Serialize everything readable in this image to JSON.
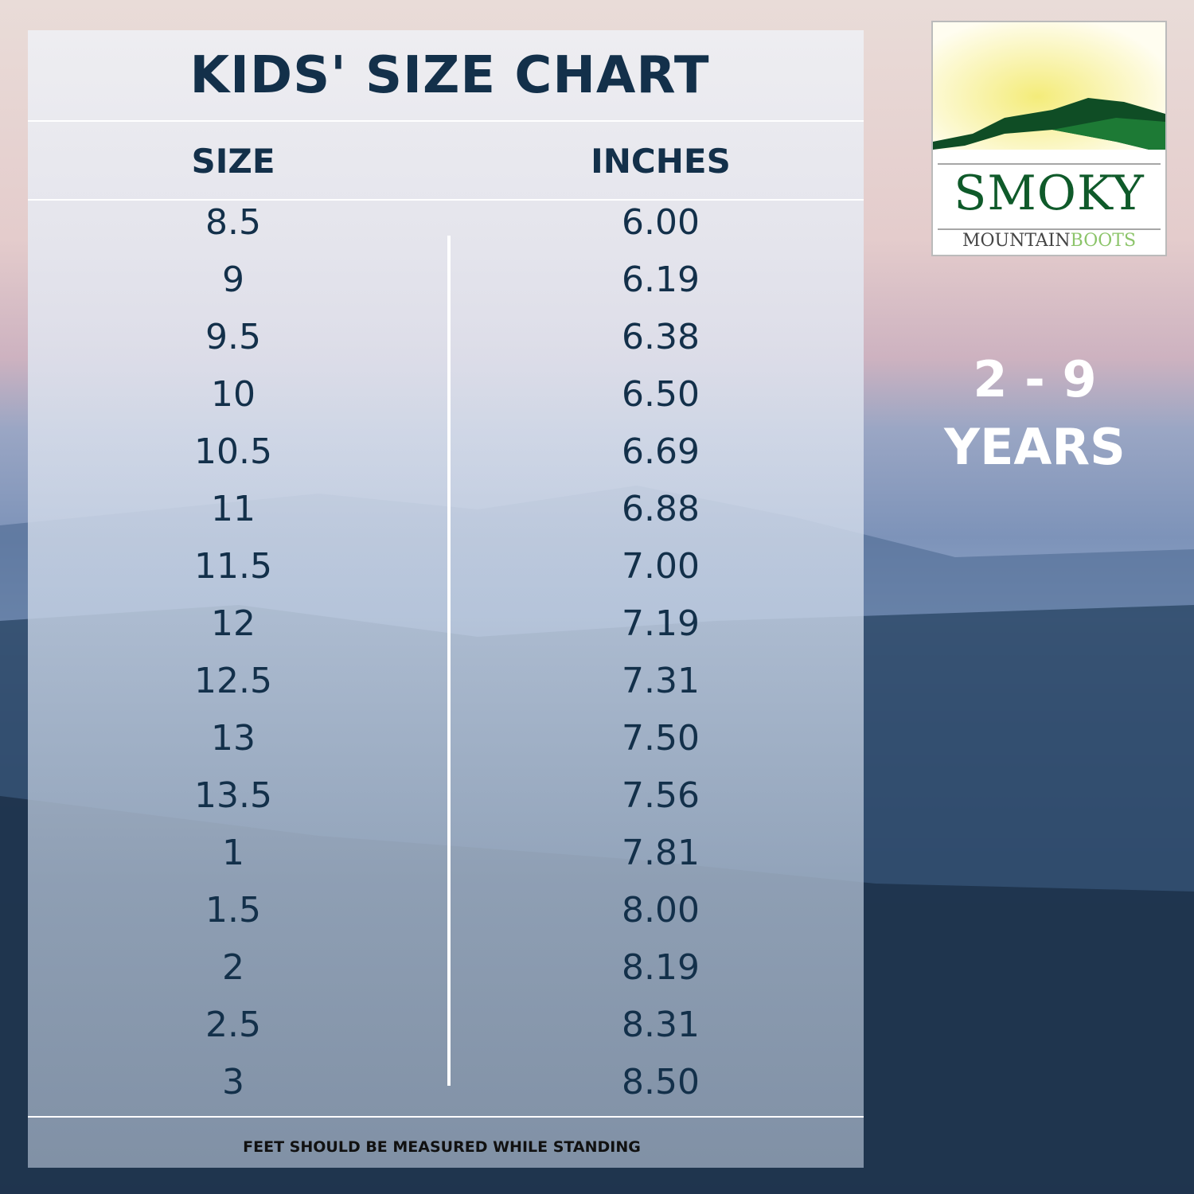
{
  "title": "KIDS' SIZE CHART",
  "columns": [
    "SIZE",
    "INCHES"
  ],
  "rows": [
    [
      "8.5",
      "6.00"
    ],
    [
      "9",
      "6.19"
    ],
    [
      "9.5",
      "6.38"
    ],
    [
      "10",
      "6.50"
    ],
    [
      "10.5",
      "6.69"
    ],
    [
      "11",
      "6.88"
    ],
    [
      "11.5",
      "7.00"
    ],
    [
      "12",
      "7.19"
    ],
    [
      "12.5",
      "7.31"
    ],
    [
      "13",
      "7.50"
    ],
    [
      "13.5",
      "7.56"
    ],
    [
      "1",
      "7.81"
    ],
    [
      "1.5",
      "8.00"
    ],
    [
      "2",
      "8.19"
    ],
    [
      "2.5",
      "8.31"
    ],
    [
      "3",
      "8.50"
    ]
  ],
  "footer_note": "FEET SHOULD BE MEASURED WHILE STANDING",
  "age_range": {
    "line1": "2 - 9",
    "line2": "YEARS"
  },
  "logo": {
    "word1": "SMOKY",
    "word2": "MOUNTAIN",
    "word3": "BOOTS",
    "colors": {
      "dark_green": "#0f5a2a",
      "light_green": "#8cc46a",
      "sun": "#f4ec7a"
    }
  },
  "colors": {
    "text": "#13304a"
  }
}
